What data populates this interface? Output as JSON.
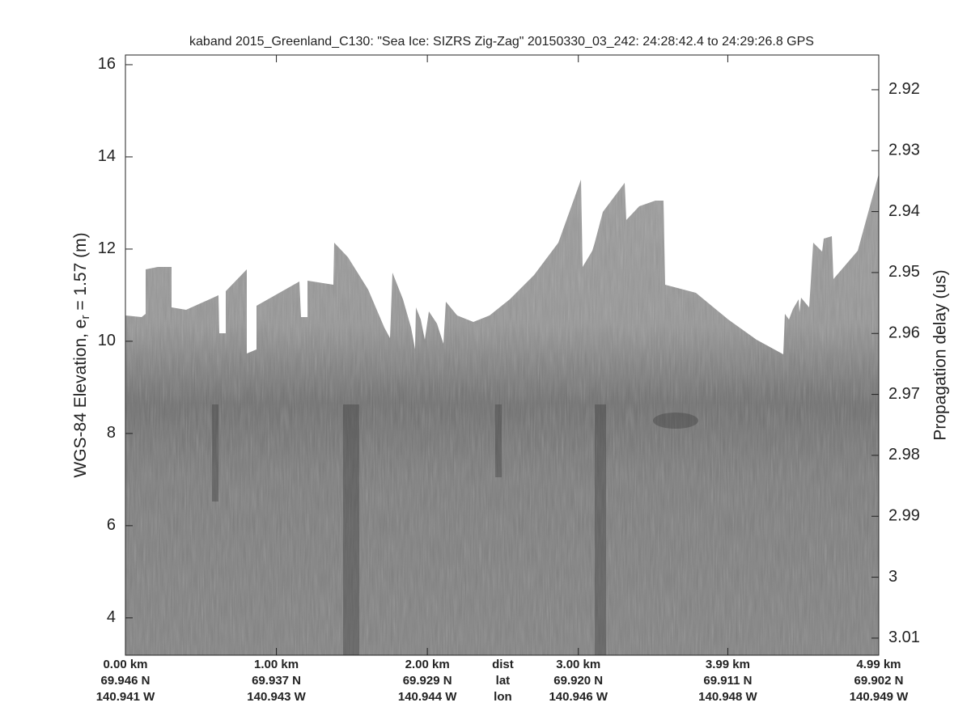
{
  "chart_data": {
    "type": "echogram",
    "title": "kaband 2015_Greenland_C130: \"Sea Ice: SIZRS Zig-Zag\"  20150330_03_242: 24:28:42.4 to 24:29:26.8 GPS",
    "ylabel": "WGS-84 Elevation, e",
    "ylabel_subscript": "r",
    "ylabel_suffix": " = 1.57 (m)",
    "y2label": "Propagation delay (us)",
    "xlim": [
      0,
      4.99
    ],
    "xticks": [
      {
        "value": 0,
        "label": "0.00 km"
      },
      {
        "value": 1,
        "label": "1.00 km"
      },
      {
        "value": 2,
        "label": "2.00 km"
      },
      {
        "value": 3,
        "label": "3.00 km"
      },
      {
        "value": 3.99,
        "label": "3.99 km"
      },
      {
        "value": 4.99,
        "label": "4.99 km"
      }
    ],
    "lat_labels": [
      "69.946 N",
      "69.937 N",
      "69.929 N",
      "69.920 N",
      "69.911 N",
      "69.902 N"
    ],
    "lon_labels": [
      "140.941 W",
      "140.943 W",
      "140.944 W",
      "140.946 W",
      "140.948 W",
      "140.949 W"
    ],
    "row_labels": [
      "dist",
      "lat",
      "lon"
    ],
    "ylim": [
      3.19,
      16.21
    ],
    "yticks": [
      4,
      6,
      8,
      10,
      12,
      14,
      16
    ],
    "y2lim": [
      2.9143,
      3.0128
    ],
    "y2ticks": [
      2.92,
      2.93,
      2.94,
      2.95,
      2.96,
      2.97,
      2.98,
      2.99,
      3,
      3.01
    ]
  }
}
